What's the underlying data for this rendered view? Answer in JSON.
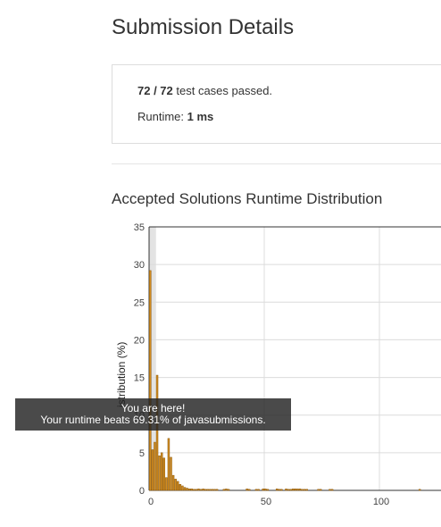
{
  "page": {
    "title": "Submission Details",
    "section_title": "Accepted Solutions Runtime Distribution"
  },
  "summary": {
    "passed": "72 / 72",
    "passed_suffix": " test cases passed.",
    "runtime_label": "Runtime: ",
    "runtime_value": "1 ms"
  },
  "tooltip": {
    "line1": "You are here!",
    "line2": "Your runtime beats 69.31% of javasubmissions."
  },
  "colors": {
    "bar_fill": "#d08b1f",
    "bar_stroke": "#8c5a10",
    "highlight_band": "#e3e3e3",
    "grid": "#dcdcdc",
    "axis": "#333333"
  },
  "chart_data": {
    "type": "bar",
    "title": "",
    "xlabel": "",
    "ylabel": "Distribution (%)",
    "ylabel_visible": "istribution (%)",
    "xlim": [
      0,
      125
    ],
    "ylim": [
      0,
      35
    ],
    "xticks": [
      0,
      50,
      100
    ],
    "yticks": [
      0,
      5,
      10,
      15,
      20,
      25,
      30,
      35
    ],
    "grid": true,
    "bar_width_ms": 1,
    "highlight_ms": 1,
    "x": [
      1,
      2,
      3,
      4,
      5,
      6,
      7,
      8,
      9,
      10,
      11,
      12,
      13,
      14,
      15,
      16,
      17,
      18,
      19,
      20,
      21,
      22,
      23,
      24,
      25,
      26,
      27,
      28,
      29,
      30,
      33,
      34,
      35,
      43,
      44,
      47,
      48,
      50,
      51,
      52,
      56,
      57,
      58,
      60,
      61,
      62,
      63,
      64,
      65,
      66,
      67,
      68,
      69,
      74,
      75,
      79,
      80,
      118
    ],
    "values": [
      29.2,
      5.4,
      6.4,
      15.3,
      4.6,
      5.0,
      4.3,
      1.7,
      6.9,
      4.4,
      2.0,
      1.5,
      1.2,
      0.8,
      0.6,
      0.4,
      0.3,
      0.2,
      0.2,
      0.1,
      0.1,
      0.2,
      0.1,
      0.2,
      0.1,
      0.1,
      0.1,
      0.1,
      0.1,
      0.1,
      0.1,
      0.2,
      0.1,
      0.2,
      0.1,
      0.1,
      0.1,
      0.2,
      0.2,
      0.1,
      0.2,
      0.1,
      0.1,
      0.2,
      0.1,
      0.1,
      0.2,
      0.2,
      0.2,
      0.2,
      0.1,
      0.1,
      0.1,
      0.1,
      0.1,
      0.1,
      0.1,
      0.1
    ]
  }
}
